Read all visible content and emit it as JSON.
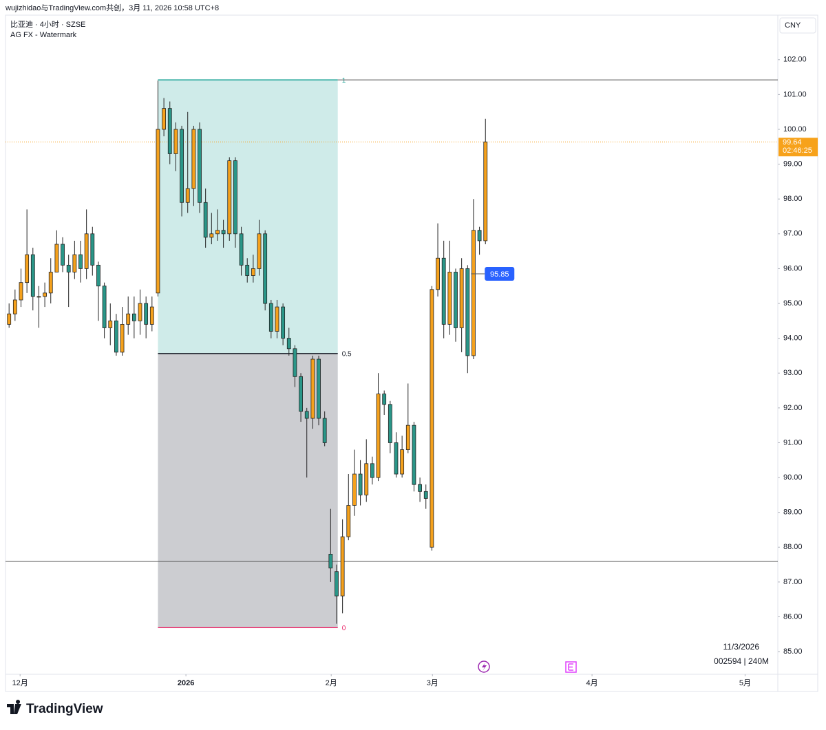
{
  "header": {
    "credit": "wujizhidao与TradingView.com共创，3月 11, 2026 10:58 UTC+8",
    "brand": "TradingView"
  },
  "chart_data": {
    "type": "candlestick",
    "title": "比亚迪 · 4小时 · SZSE",
    "subtitle": "AG FX - Watermark",
    "currency": "CNY",
    "date_label": "11/3/2026",
    "symbol_label": "002594 | 240M",
    "countdown": "02:46:25",
    "up_color": "#f5a11c",
    "down_color": "#2a9688",
    "open": [
      94.4,
      94.7,
      95.1,
      95.6,
      96.4,
      95.2,
      95.2,
      95.3,
      95.9,
      96.7,
      96.1,
      95.9,
      96.4,
      96.0,
      97.0,
      96.1,
      95.5,
      94.3,
      94.5,
      93.6,
      94.4,
      94.7,
      94.5,
      95.0,
      94.4,
      95.3,
      100.0,
      100.6,
      99.3,
      100.0,
      97.9,
      98.3,
      100.0,
      97.9,
      96.9,
      97.0,
      97.1,
      97.0,
      99.1,
      97.0,
      96.1,
      95.8,
      96.0,
      97.0,
      95.0,
      94.2,
      94.9,
      94.0,
      93.7,
      92.9,
      91.9,
      91.7,
      93.4,
      91.7,
      87.8,
      87.3,
      86.6,
      88.3,
      89.2,
      90.1,
      89.5,
      90.4,
      90.0,
      92.4,
      92.1,
      91.0,
      90.1,
      90.8,
      91.5,
      89.8,
      89.6,
      88.0,
      95.4,
      96.3,
      94.4,
      95.9,
      94.3,
      96.0,
      93.5,
      97.1,
      96.8
    ],
    "high": [
      95.0,
      95.4,
      96.0,
      97.7,
      96.6,
      95.5,
      95.6,
      96.3,
      97.1,
      96.9,
      96.4,
      96.8,
      96.8,
      97.7,
      97.2,
      96.2,
      95.6,
      95.0,
      94.7,
      94.9,
      95.2,
      95.2,
      95.4,
      95.2,
      95.2,
      101.4,
      100.9,
      100.8,
      100.2,
      100.1,
      100.5,
      100.1,
      100.2,
      98.3,
      97.6,
      97.7,
      97.4,
      99.2,
      99.2,
      97.2,
      96.3,
      96.4,
      97.4,
      97.1,
      95.1,
      95.1,
      95.0,
      94.3,
      93.8,
      93.0,
      92.0,
      93.5,
      93.5,
      91.9,
      89.1,
      87.5,
      88.8,
      90.1,
      90.8,
      90.5,
      91.1,
      90.6,
      93.0,
      92.5,
      92.2,
      91.3,
      91.2,
      92.7,
      91.6,
      90.0,
      89.8,
      95.5,
      97.3,
      96.8,
      96.8,
      96.0,
      96.3,
      96.1,
      98.0,
      97.2,
      100.3
    ],
    "low": [
      94.3,
      94.5,
      94.9,
      95.3,
      94.8,
      94.3,
      94.9,
      95.0,
      95.9,
      95.9,
      94.9,
      95.7,
      95.6,
      95.7,
      95.8,
      94.5,
      94.0,
      93.8,
      93.5,
      93.5,
      94.1,
      94.0,
      94.1,
      94.0,
      94.2,
      95.2,
      99.8,
      99.0,
      98.8,
      97.5,
      97.6,
      97.8,
      97.6,
      96.6,
      96.7,
      96.8,
      96.6,
      96.8,
      96.6,
      95.8,
      95.6,
      95.6,
      95.8,
      94.8,
      94.0,
      94.0,
      93.8,
      93.5,
      92.6,
      91.6,
      90.0,
      91.4,
      91.5,
      90.9,
      87.0,
      85.8,
      86.1,
      88.2,
      88.9,
      89.2,
      89.3,
      89.8,
      89.9,
      91.8,
      90.7,
      90.0,
      90.0,
      90.7,
      89.6,
      89.3,
      89.1,
      87.9,
      95.2,
      94.0,
      94.1,
      93.9,
      93.6,
      93.0,
      93.4,
      96.4,
      96.7
    ],
    "close": [
      94.7,
      95.1,
      95.6,
      96.4,
      95.2,
      95.2,
      95.3,
      95.9,
      96.7,
      96.1,
      95.9,
      96.4,
      96.0,
      97.0,
      96.1,
      95.5,
      94.3,
      94.5,
      93.6,
      94.4,
      94.7,
      94.5,
      95.0,
      94.4,
      94.9,
      100.0,
      100.6,
      99.3,
      100.0,
      97.9,
      98.3,
      100.0,
      97.9,
      96.9,
      97.0,
      97.1,
      97.0,
      99.1,
      97.0,
      96.1,
      95.8,
      96.0,
      97.0,
      95.0,
      94.2,
      94.9,
      94.0,
      93.7,
      92.9,
      91.9,
      91.7,
      93.4,
      91.7,
      91.0,
      87.4,
      86.6,
      88.3,
      89.2,
      90.1,
      89.5,
      90.4,
      90.0,
      92.4,
      92.1,
      91.0,
      90.1,
      90.8,
      91.5,
      89.8,
      89.6,
      89.4,
      95.4,
      96.3,
      94.4,
      95.9,
      94.3,
      96.0,
      93.5,
      97.1,
      96.8,
      99.64
    ],
    "xlim": [
      -0.6,
      129.1
    ],
    "xticks": [
      {
        "value": 1.85,
        "label": "12月"
      },
      {
        "value": 29.7,
        "label": "2026"
      },
      {
        "value": 54.1,
        "label": "2月"
      },
      {
        "value": 71.1,
        "label": "3月"
      },
      {
        "value": 97.9,
        "label": "4月"
      },
      {
        "value": 123.6,
        "label": "5月"
      }
    ],
    "ylim": [
      84.35,
      103.28
    ],
    "yticks": [
      {
        "value": 85,
        "label": "85.00"
      },
      {
        "value": 86,
        "label": "86.00"
      },
      {
        "value": 87,
        "label": "87.00"
      },
      {
        "value": 88,
        "label": "88.00"
      },
      {
        "value": 89,
        "label": "89.00"
      },
      {
        "value": 90,
        "label": "90.00"
      },
      {
        "value": 91,
        "label": "91.00"
      },
      {
        "value": 92,
        "label": "92.00"
      },
      {
        "value": 93,
        "label": "93.00"
      },
      {
        "value": 94,
        "label": "94.00"
      },
      {
        "value": 95,
        "label": "95.00"
      },
      {
        "value": 96,
        "label": "96.00"
      },
      {
        "value": 97,
        "label": "97.00"
      },
      {
        "value": 98,
        "label": "98.00"
      },
      {
        "value": 99,
        "label": "99.00"
      },
      {
        "value": 100,
        "label": "100.00"
      },
      {
        "value": 101,
        "label": "101.00"
      },
      {
        "value": 102,
        "label": "102.00"
      }
    ],
    "fib": {
      "start": 25,
      "end": 55.2,
      "levels": [
        {
          "ratio": 1,
          "price": 101.42
        },
        {
          "ratio": 0.5,
          "price": 93.56
        },
        {
          "ratio": 0,
          "price": 85.69
        }
      ]
    },
    "hlines": [
      101.42,
      87.59
    ],
    "price_label": 95.85
  }
}
